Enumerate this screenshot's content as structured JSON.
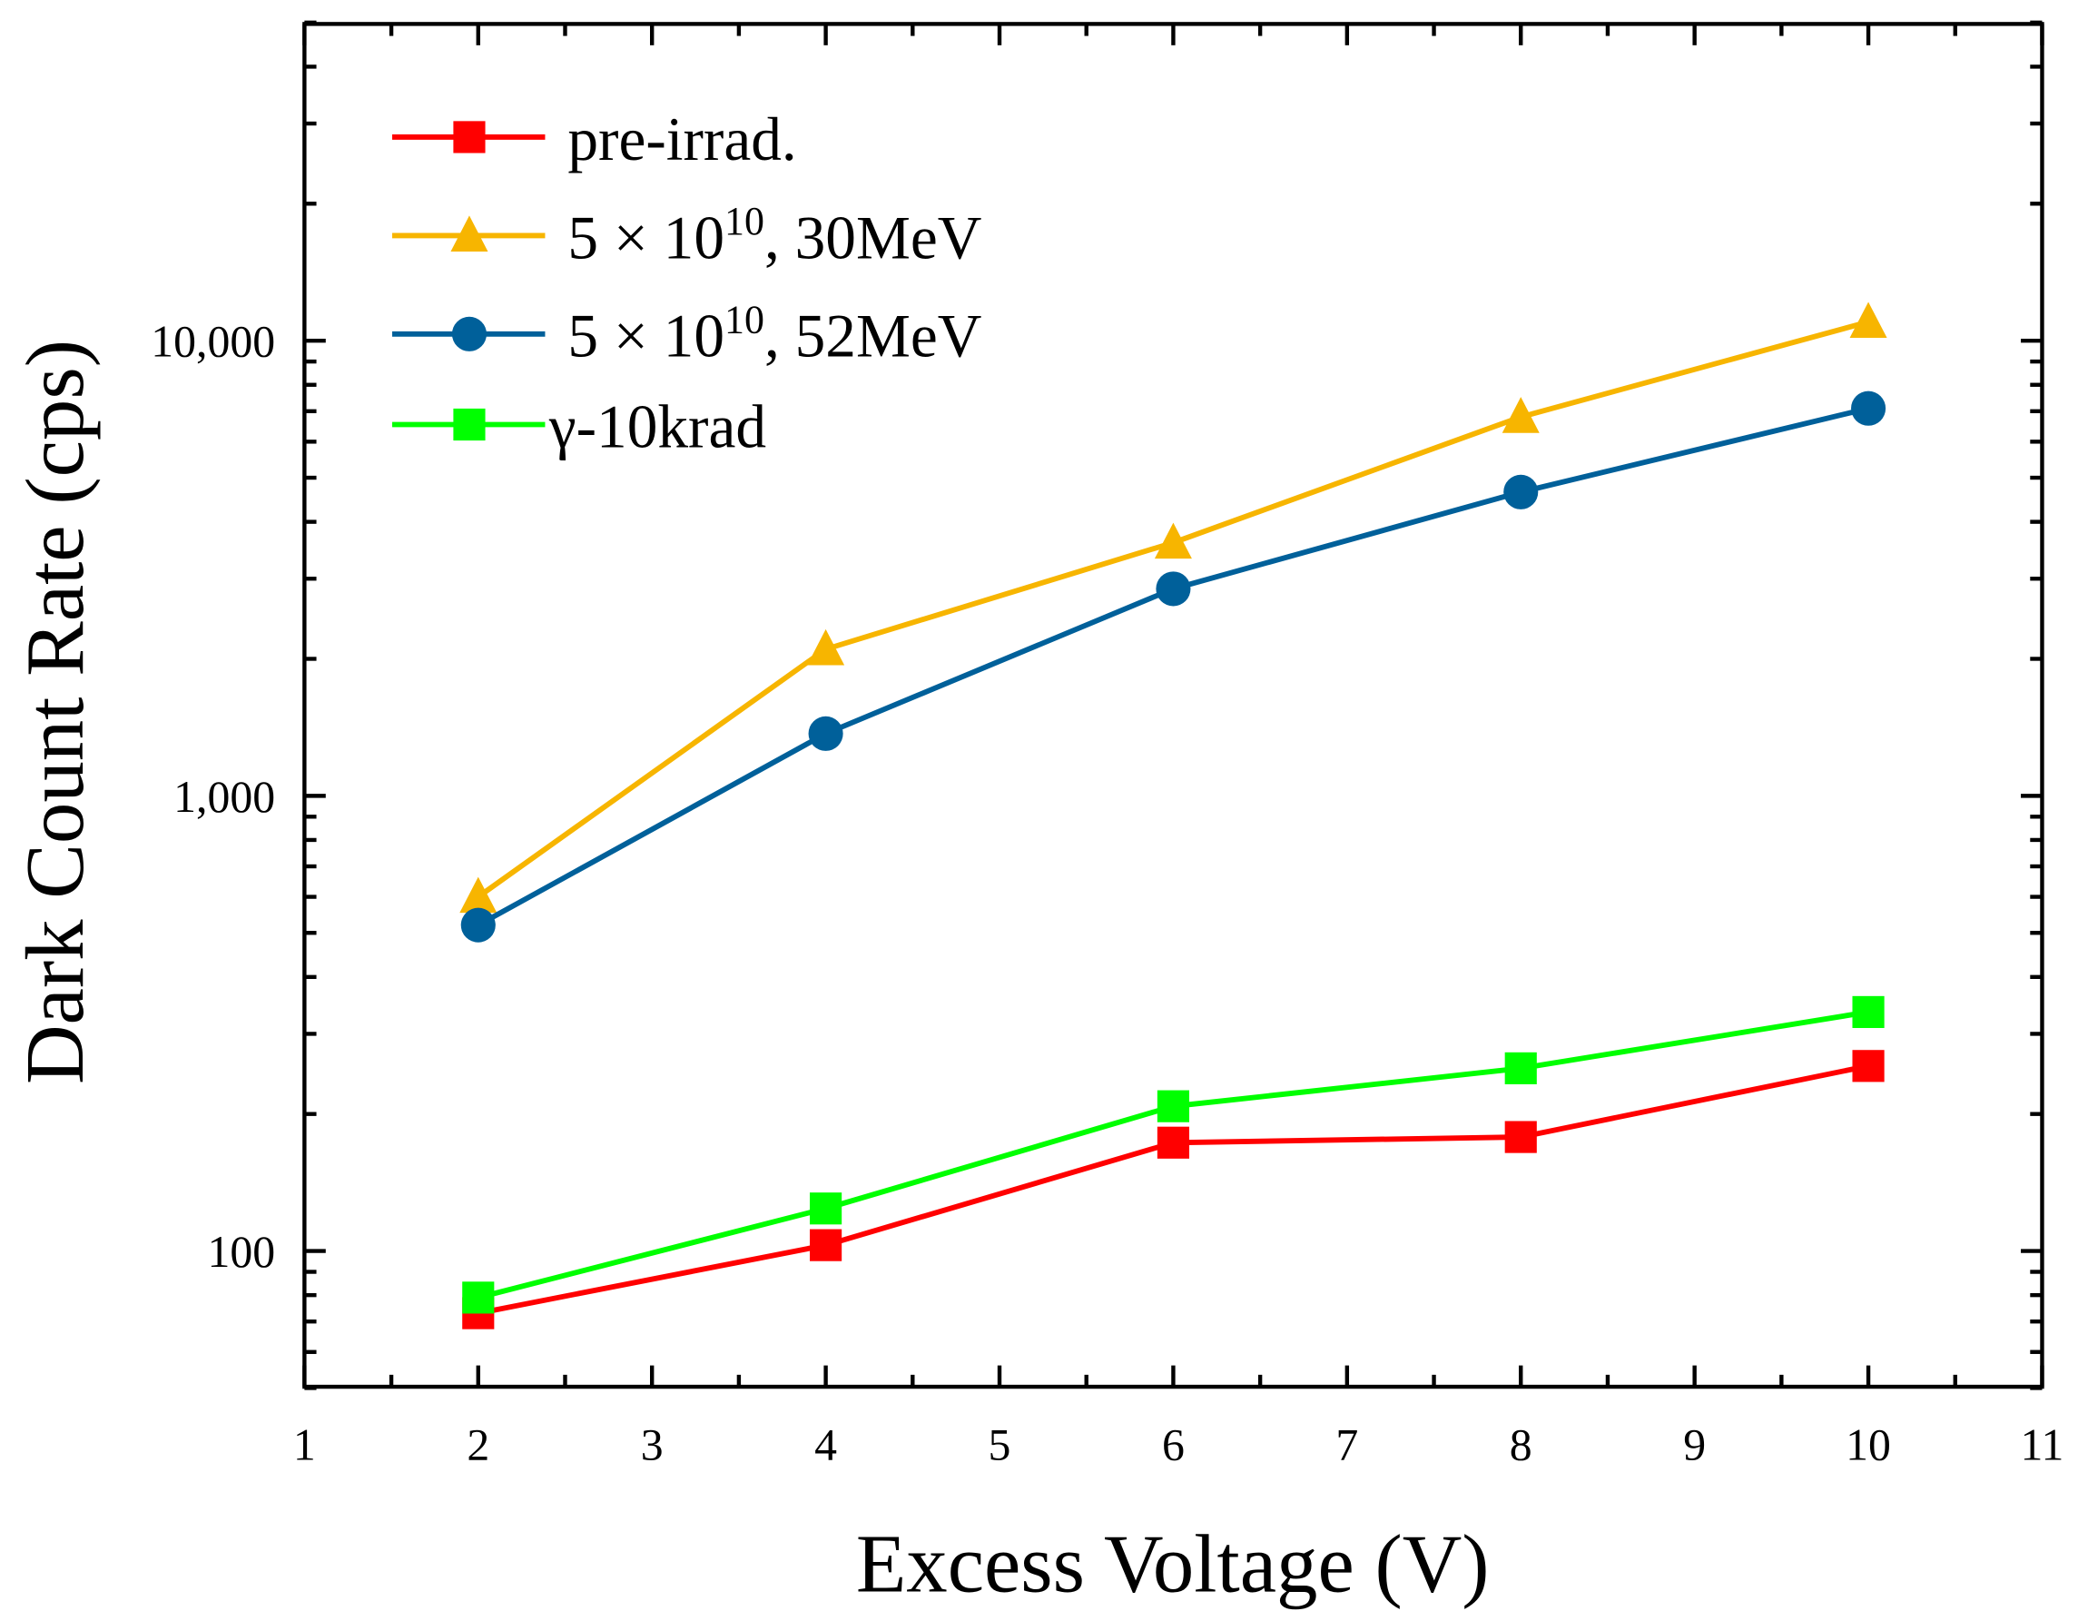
{
  "chart_data": {
    "type": "line",
    "title": "",
    "xlabel": "Excess Voltage (V)",
    "ylabel": "Dark Count Rate (cps)",
    "xlim": [
      1,
      11
    ],
    "ylim": [
      50,
      50000
    ],
    "yscale": "log",
    "grid": false,
    "legend_position": "top-left",
    "x_ticks": [
      "1",
      "2",
      "3",
      "4",
      "5",
      "6",
      "7",
      "8",
      "9",
      "10",
      "11"
    ],
    "y_ticks": [
      "100",
      "1,000",
      "10,000"
    ],
    "x": [
      2,
      4,
      6,
      8,
      10
    ],
    "series": [
      {
        "name": "pre-irrad.",
        "legend_text": "pre-irrad.",
        "marker": "square",
        "color": "#ff0000",
        "values": [
          73,
          103,
          173,
          178,
          255
        ]
      },
      {
        "name": "5 × 10^10, 30MeV",
        "legend_base": "5 × 10",
        "legend_exp": "10",
        "legend_suffix": ", 30MeV",
        "marker": "triangle",
        "color": "#f7b500",
        "values": [
          600,
          2100,
          3600,
          6800,
          11000
        ]
      },
      {
        "name": "5 × 10^10, 52MeV",
        "legend_base": "5 × 10",
        "legend_exp": "10",
        "legend_suffix": ", 52MeV",
        "marker": "circle",
        "color": "#00609a",
        "values": [
          520,
          1370,
          2850,
          4650,
          7100
        ]
      },
      {
        "name": "γ-10krad",
        "legend_text": "γ-10krad",
        "marker": "square",
        "color": "#00ff00",
        "values": [
          79,
          124,
          208,
          252,
          335
        ]
      }
    ]
  }
}
